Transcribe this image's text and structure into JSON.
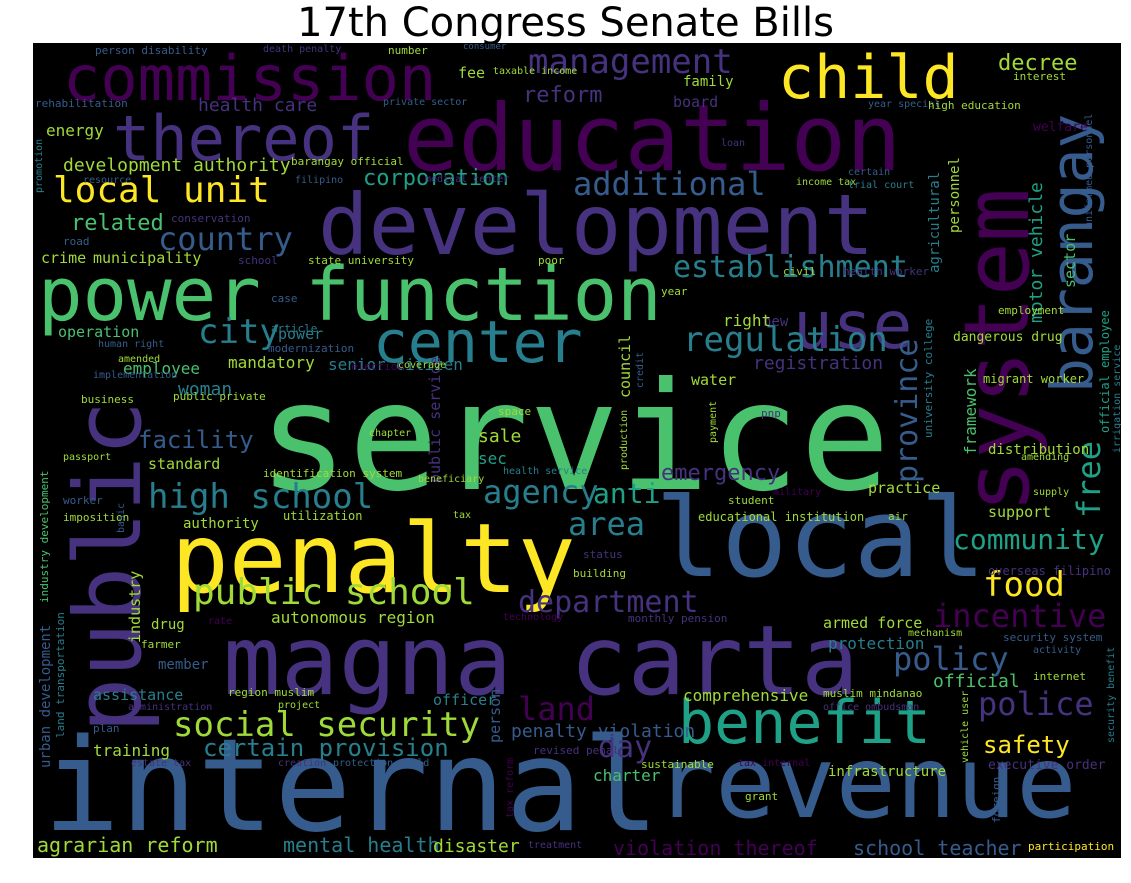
{
  "title": "17th Congress Senate Bills",
  "colors": {
    "c1": "#440154",
    "c2": "#46327e",
    "c3": "#365c8d",
    "c4": "#277f8e",
    "c5": "#1fa187",
    "c6": "#4ac16d",
    "c7": "#a0da39",
    "c8": "#fde725"
  },
  "words": {
    "service": "service",
    "internal": "internal",
    "revenue": "revenue",
    "magna_carta": "magna carta",
    "penalty": "penalty",
    "local": "local",
    "development": "development",
    "education": "education",
    "power_function": "power function",
    "public": "public",
    "system": "system",
    "commission": "commission",
    "thereof": "thereof",
    "child": "child",
    "barangay": "barangay",
    "benefit": "benefit",
    "center": "center",
    "use": "use",
    "management": "management",
    "local_unit": "local unit",
    "public_school": "public school",
    "social_security": "social security",
    "high_school": "high school",
    "regulation": "regulation",
    "establishment": "establishment",
    "additional": "additional",
    "country": "country",
    "city": "city",
    "agency": "agency",
    "area": "area",
    "anti": "anti",
    "department": "department",
    "incentive": "incentive",
    "policy": "policy",
    "police": "police",
    "land": "land",
    "community": "community",
    "food": "food",
    "free": "free",
    "province": "province",
    "day": "day",
    "certain_provision": "certain provision",
    "corporation": "corporation",
    "related": "related",
    "facility": "facility",
    "emergency": "emergency",
    "decree": "decree",
    "reform": "reform",
    "safety": "safety",
    "agrarian_reform": "agrarian reform",
    "mental_health": "mental health",
    "disaster": "disaster",
    "violation_thereof": "violation thereof",
    "school_teacher": "school teacher",
    "penalty_violation": "penalty violation",
    "development_authority": "development authority",
    "health_care": "health care",
    "energy": "energy",
    "crime": "crime",
    "municipality": "municipality",
    "operation": "operation",
    "employee": "employee",
    "woman": "woman",
    "mandatory": "mandatory",
    "standard": "standard",
    "senior_citizen": "senior citizen",
    "registration": "registration",
    "sale": "sale",
    "sec": "sec",
    "authority": "authority",
    "autonomous_region": "autonomous region",
    "armed_force": "armed force",
    "protection": "protection",
    "official": "official",
    "comprehensive": "comprehensive",
    "assistance": "assistance",
    "officer": "officer",
    "training": "training",
    "charter": "charter",
    "infrastructure": "infrastructure",
    "motor_vehicle": "motor vehicle",
    "personnel": "personnel",
    "agricultural": "agricultural",
    "sector": "sector",
    "framework": "framework",
    "council": "council",
    "public_service": "public service",
    "industry": "industry",
    "person": "person",
    "urban_development": "urban development",
    "land_transportation": "land transportation",
    "industry_development": "industry development",
    "family": "family",
    "fee": "fee",
    "board": "board",
    "interest": "interest",
    "welfare": "welfare",
    "loan": "loan",
    "income_tax": "income tax",
    "certain": "certain",
    "trial_court": "trial court",
    "medical_center": "medical center",
    "barangay_official": "barangay official",
    "resource": "resource",
    "filipino": "filipino",
    "promotion": "promotion",
    "rehabilitation": "rehabilitation",
    "person_disability": "person disability",
    "death_penalty": "death penalty",
    "number": "number",
    "consumer": "consumer",
    "taxable_income": "taxable income",
    "private_sector": "private sector",
    "year_special": "year special",
    "high_education": "high education",
    "uniformed_personnel": "uniformed personnel",
    "conservation": "conservation",
    "road": "road",
    "school": "school",
    "state_university": "state university",
    "poor": "poor",
    "civil": "civil",
    "health_worker": "health worker",
    "year": "year",
    "case": "case",
    "article": "article",
    "power": "power",
    "new": "new",
    "right": "right",
    "dangerous_drug": "dangerous drug",
    "employment": "employment",
    "human_right": "human right",
    "amended": "amended",
    "modernization": "modernization",
    "election": "election",
    "coverage": "coverage",
    "credit": "credit",
    "water": "water",
    "implementation": "implementation",
    "business": "business",
    "public_private": "public private",
    "chapter": "chapter",
    "space": "space",
    "payment": "payment",
    "pnp": "pnp",
    "production": "production",
    "migrant_worker": "migrant worker",
    "university_college": "university college",
    "official_employee": "official employee",
    "irrigation_service": "irrigation service",
    "passport": "passport",
    "identification_system": "identification system",
    "beneficiary": "beneficiary",
    "health_service": "health service",
    "distribution": "distribution",
    "amending": "amending",
    "supply": "supply",
    "military": "military",
    "practice": "practice",
    "worker": "worker",
    "imposition": "imposition",
    "utilization": "utilization",
    "tax": "tax",
    "student": "student",
    "educational_institution": "educational institution",
    "air": "air",
    "support": "support",
    "basic": "basic",
    "status": "status",
    "building": "building",
    "overseas_filipino": "overseas filipino",
    "drug": "drug",
    "technology": "technology",
    "monthly_pension": "monthly pension",
    "rate": "rate",
    "farmer": "farmer",
    "member": "member",
    "mechanism": "mechanism",
    "security_system": "security system",
    "activity": "activity",
    "region_muslim": "region muslim",
    "project": "project",
    "muslim_mindanao": "muslim mindanao",
    "office_ombudsman": "office ombudsman",
    "internet": "internet",
    "security_benefit": "security benefit",
    "administration": "administration",
    "plan": "plan",
    "revised_penal": "revised penal",
    "estate_tax": "estate tax",
    "creation": "creation",
    "protection_child": "protection child",
    "sustainable": "sustainable",
    "tax_internal": "tax internal",
    "executive_order": "executive order",
    "tax_reform": "tax reform",
    "vehicle_user": "vehicle user",
    "foreign": "foreign",
    "grant": "grant",
    "treatment": "treatment",
    "participation": "participation"
  }
}
